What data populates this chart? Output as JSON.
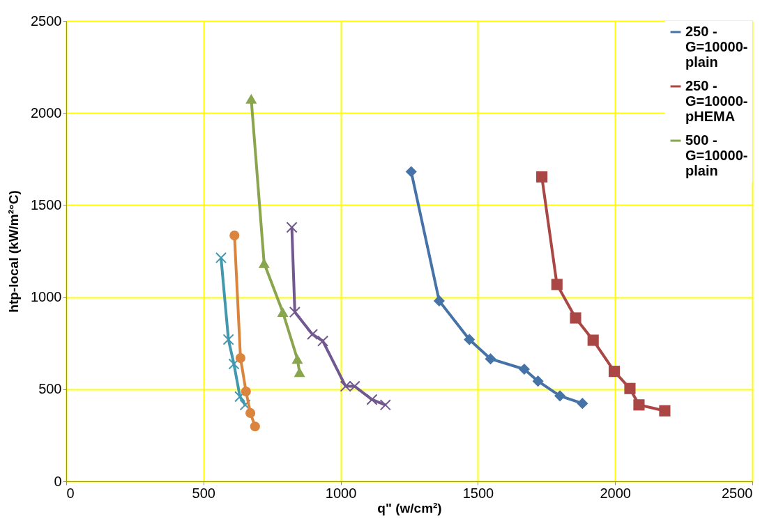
{
  "chart_data": {
    "type": "line",
    "xlabel": "q\" (w/cm²)",
    "ylabel": "htp-local (kW/m²°C)",
    "xlim": [
      0,
      2500
    ],
    "xticks": [
      0,
      500,
      1000,
      1500,
      2000,
      2500
    ],
    "ylim": [
      0,
      2500
    ],
    "yticks": [
      0,
      500,
      1000,
      1500,
      2000,
      2500
    ],
    "grid": true,
    "legend": "top right",
    "line_style": "solid",
    "series": [
      {
        "name": "250 - G=10000-plain",
        "color": "#4572a7",
        "marker": "diamond",
        "x": [
          1257,
          1359,
          1469,
          1546,
          1669,
          1719,
          1799,
          1881
        ],
        "values": [
          1681,
          980,
          770,
          665,
          609,
          544,
          464,
          423
        ]
      },
      {
        "name": "250 - G=10000-pHEMA",
        "color": "#aa4643",
        "marker": "square",
        "x": [
          1733,
          1788,
          1856,
          1920,
          1997,
          2054,
          2087,
          2181
        ],
        "values": [
          1653,
          1069,
          887,
          766,
          597,
          504,
          415,
          383
        ]
      },
      {
        "name": "500 - G=10000-plain",
        "color": "#89a54e",
        "marker": "triangle",
        "x": [
          674,
          721,
          789,
          842,
          850
        ],
        "values": [
          2077,
          1185,
          919,
          665,
          593
        ]
      },
      {
        "color": "#71588f",
        "marker": "cross",
        "x": [
          822,
          833,
          897,
          935,
          1018,
          1051,
          1114,
          1163
        ],
        "values": [
          1379,
          919,
          798,
          762,
          516,
          516,
          444,
          415
        ]
      },
      {
        "color": "#4198af",
        "marker": "cross",
        "x": [
          564,
          591,
          611,
          633,
          652
        ],
        "values": [
          1214,
          770,
          637,
          460,
          415
        ]
      },
      {
        "color": "#db843d",
        "marker": "circle",
        "x": [
          613,
          635,
          655,
          671,
          688
        ],
        "values": [
          1335,
          669,
          488,
          371,
          298
        ]
      }
    ]
  }
}
